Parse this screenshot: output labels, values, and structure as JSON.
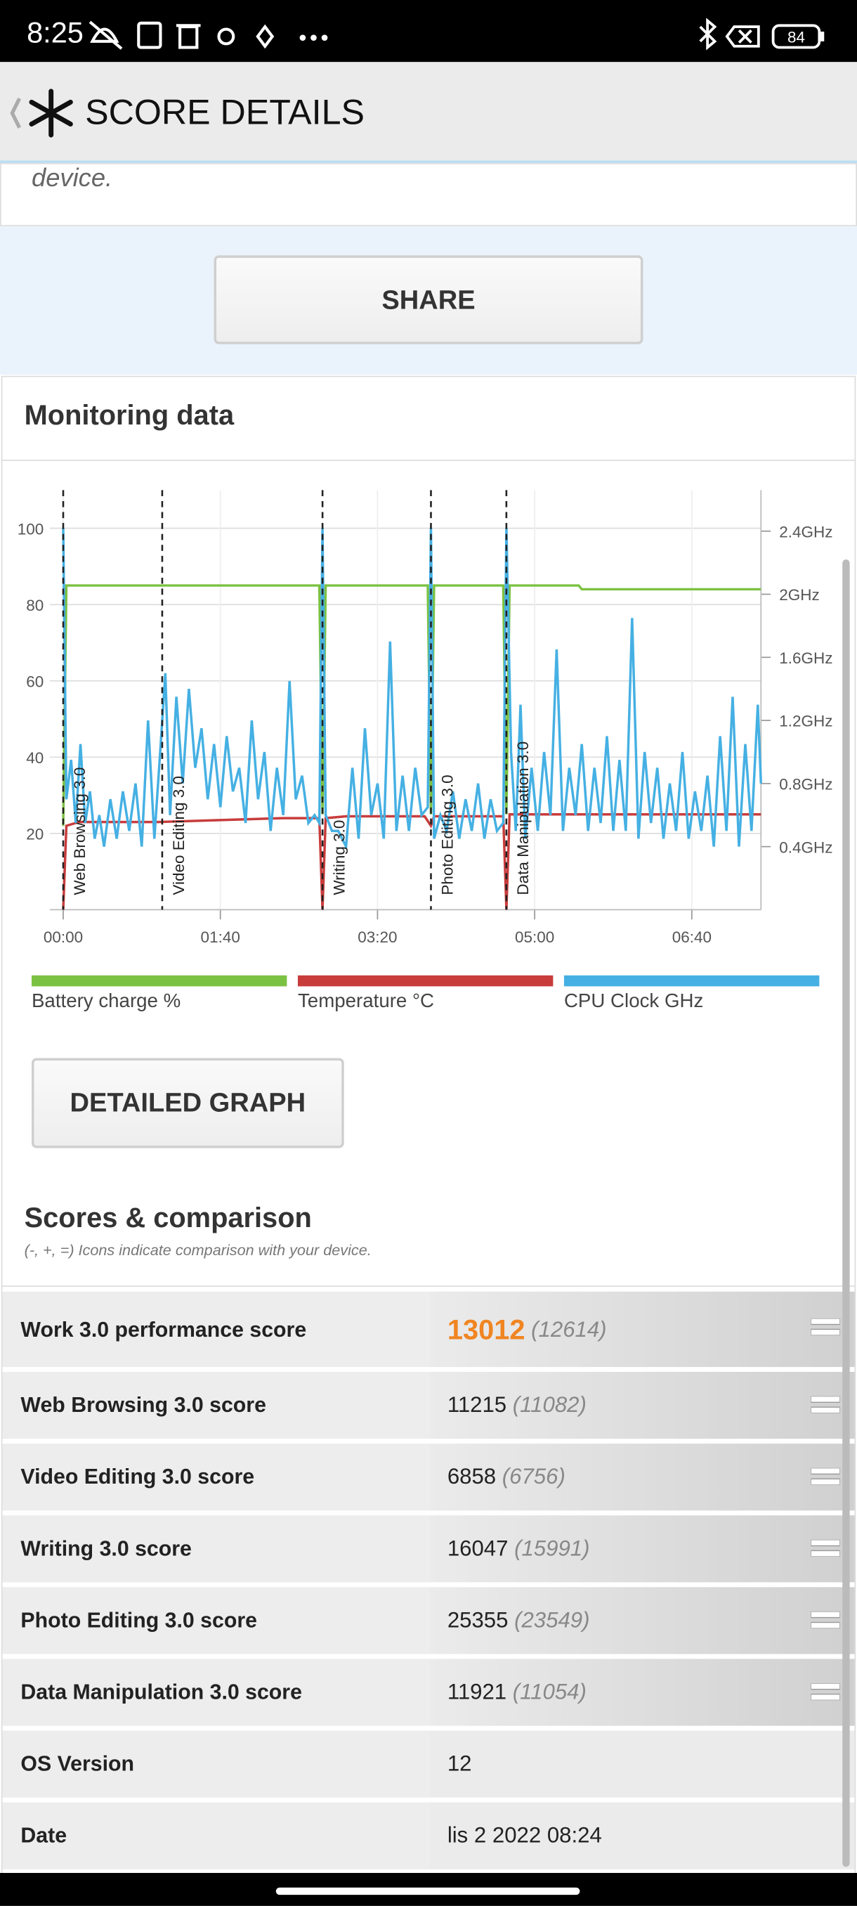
{
  "status_bar": {
    "time": "8:25",
    "battery": "84"
  },
  "header": {
    "title": "SCORE DETAILS"
  },
  "intro": {
    "text": "device."
  },
  "share_button": "SHARE",
  "monitoring": {
    "title": "Monitoring data",
    "button": "DETAILED GRAPH"
  },
  "chart_data": {
    "type": "line",
    "xlim": [
      0,
      444
    ],
    "xticks": [
      {
        "value": 0,
        "label": "00:00"
      },
      {
        "value": 100,
        "label": "01:40"
      },
      {
        "value": 200,
        "label": "03:20"
      },
      {
        "value": 300,
        "label": "05:00"
      },
      {
        "value": 400,
        "label": "06:40"
      }
    ],
    "ylim": [
      0,
      110
    ],
    "yticks": [
      20,
      40,
      60,
      80,
      100
    ],
    "y2lim": [
      0,
      2.66
    ],
    "y2ticks": [
      {
        "value": 0.4,
        "label": "0.4GHz"
      },
      {
        "value": 0.8,
        "label": "0.8GHz"
      },
      {
        "value": 1.2,
        "label": "1.2GHz"
      },
      {
        "value": 1.6,
        "label": "1.6GHz"
      },
      {
        "value": 2,
        "label": "2GHz"
      },
      {
        "value": 2.4,
        "label": "2.4GHz"
      }
    ],
    "grid": true,
    "markers": [
      {
        "x": 0,
        "label": "Web Browsing 3.0"
      },
      {
        "x": 63,
        "label": "Video Editing 3.0"
      },
      {
        "x": 165,
        "label": "Writing 3.0"
      },
      {
        "x": 234,
        "label": "Photo Editing 3.0"
      },
      {
        "x": 282,
        "label": "Data Manipulation 3.0"
      }
    ],
    "series": [
      {
        "name": "Battery charge %",
        "color": "#7cc242",
        "x": [
          0,
          2,
          60,
          163,
          165,
          167,
          232,
          234,
          236,
          280,
          282,
          284,
          328,
          330,
          444
        ],
        "values": [
          22,
          85,
          85,
          85,
          25,
          85,
          85,
          25,
          85,
          85,
          25,
          85,
          85,
          84,
          84
        ]
      },
      {
        "name": "Temperature °C",
        "color": "#c83c3c",
        "x": [
          0,
          2,
          10,
          60,
          100,
          140,
          163,
          165,
          167,
          180,
          230,
          234,
          236,
          280,
          282,
          284,
          330,
          444
        ],
        "values": [
          0,
          22,
          23,
          23,
          23.5,
          24,
          24,
          0,
          24,
          24.5,
          24.5,
          22,
          24.5,
          24.5,
          0,
          25,
          25,
          25
        ]
      },
      {
        "name": "CPU Clock GHz",
        "color": "#45b0e3",
        "axis": "y2",
        "x": [
          0,
          2,
          5,
          8,
          11,
          14,
          17,
          20,
          23,
          26,
          30,
          34,
          38,
          42,
          46,
          50,
          54,
          58,
          62,
          65,
          68,
          72,
          76,
          80,
          84,
          88,
          92,
          96,
          100,
          104,
          108,
          112,
          116,
          120,
          124,
          128,
          132,
          136,
          140,
          144,
          148,
          152,
          156,
          160,
          163,
          165,
          167,
          171,
          175,
          180,
          184,
          188,
          192,
          196,
          200,
          204,
          208,
          212,
          216,
          220,
          224,
          228,
          232,
          234,
          236,
          240,
          244,
          248,
          252,
          256,
          260,
          264,
          268,
          272,
          276,
          280,
          282,
          285,
          288,
          291,
          294,
          298,
          302,
          306,
          310,
          314,
          318,
          322,
          326,
          330,
          334,
          338,
          342,
          346,
          350,
          354,
          358,
          362,
          366,
          370,
          374,
          378,
          382,
          386,
          390,
          394,
          398,
          402,
          406,
          410,
          414,
          418,
          422,
          426,
          430,
          434,
          438,
          442,
          444
        ],
        "values": [
          2.42,
          0.7,
          0.95,
          0.55,
          1.05,
          0.55,
          0.75,
          0.45,
          0.6,
          0.4,
          0.7,
          0.45,
          0.75,
          0.5,
          0.8,
          0.4,
          1.2,
          0.45,
          1.05,
          1.5,
          0.6,
          1.35,
          0.8,
          1.4,
          0.9,
          1.15,
          0.7,
          1.05,
          0.65,
          1.1,
          0.75,
          0.9,
          0.55,
          1.2,
          0.7,
          1.0,
          0.5,
          0.9,
          0.6,
          1.45,
          0.7,
          0.85,
          0.55,
          0.6,
          0.55,
          2.42,
          0.6,
          0.5,
          0.5,
          0.4,
          0.9,
          0.45,
          1.15,
          0.6,
          0.8,
          0.45,
          1.7,
          0.5,
          0.85,
          0.5,
          0.9,
          0.6,
          0.65,
          2.42,
          0.45,
          0.6,
          0.5,
          0.75,
          0.45,
          0.7,
          0.5,
          0.8,
          0.45,
          0.7,
          0.5,
          0.55,
          2.42,
          1.0,
          0.5,
          1.3,
          0.45,
          0.9,
          0.5,
          1.0,
          0.6,
          1.65,
          0.5,
          0.9,
          0.6,
          1.05,
          0.5,
          0.9,
          0.55,
          1.1,
          0.5,
          0.95,
          0.5,
          1.85,
          0.45,
          1.0,
          0.55,
          0.9,
          0.45,
          0.8,
          0.5,
          1.0,
          0.45,
          0.75,
          0.5,
          0.85,
          0.4,
          1.1,
          0.5,
          1.35,
          0.4,
          1.05,
          0.5,
          1.3,
          0.8
        ]
      }
    ]
  },
  "scores": {
    "title": "Scores & comparison",
    "subtitle": "(-, +, =) Icons indicate comparison with your device.",
    "rows": [
      {
        "label": "Work 3.0 performance score",
        "score": "13012",
        "comparison": "(12614)"
      },
      {
        "label": "Web Browsing 3.0 score",
        "score": "11215",
        "comparison": "(11082)"
      },
      {
        "label": "Video Editing 3.0 score",
        "score": "6858",
        "comparison": "(6756)"
      },
      {
        "label": "Writing 3.0 score",
        "score": "16047",
        "comparison": "(15991)"
      },
      {
        "label": "Photo Editing 3.0 score",
        "score": "25355",
        "comparison": "(23549)"
      },
      {
        "label": "Data Manipulation 3.0 score",
        "score": "11921",
        "comparison": "(11054)"
      },
      {
        "label": "OS Version",
        "value": "12"
      },
      {
        "label": "Date",
        "value": "lis 2 2022 08:24"
      }
    ]
  }
}
